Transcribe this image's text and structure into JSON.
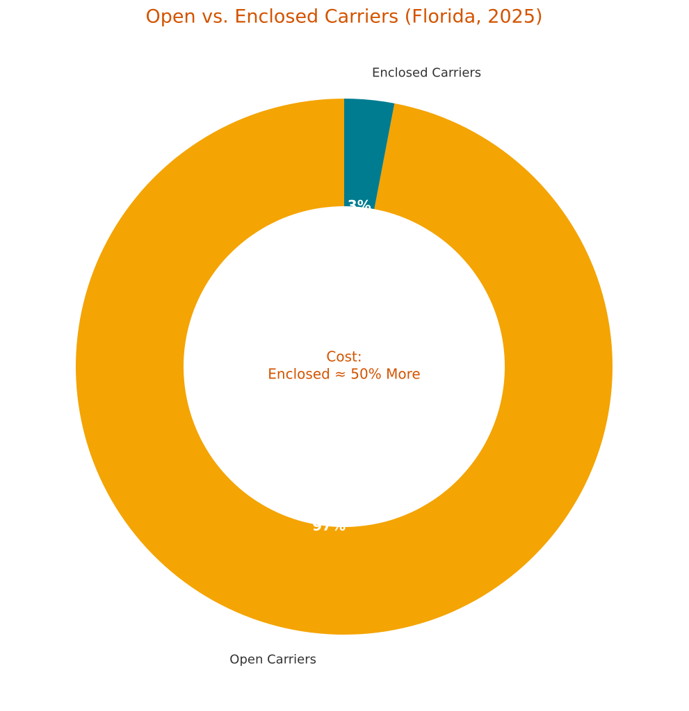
{
  "chart_data": {
    "type": "donut",
    "title": "Open vs. Enclosed Carriers (Florida, 2025)",
    "categories": [
      "Open Carriers",
      "Enclosed Carriers"
    ],
    "values": [
      97,
      3
    ],
    "value_labels": [
      "97%",
      "3%"
    ],
    "colors": [
      "#f4a403",
      "#007c91"
    ],
    "center_text": [
      "Cost:",
      "Enclosed ≈ 50% More"
    ]
  }
}
